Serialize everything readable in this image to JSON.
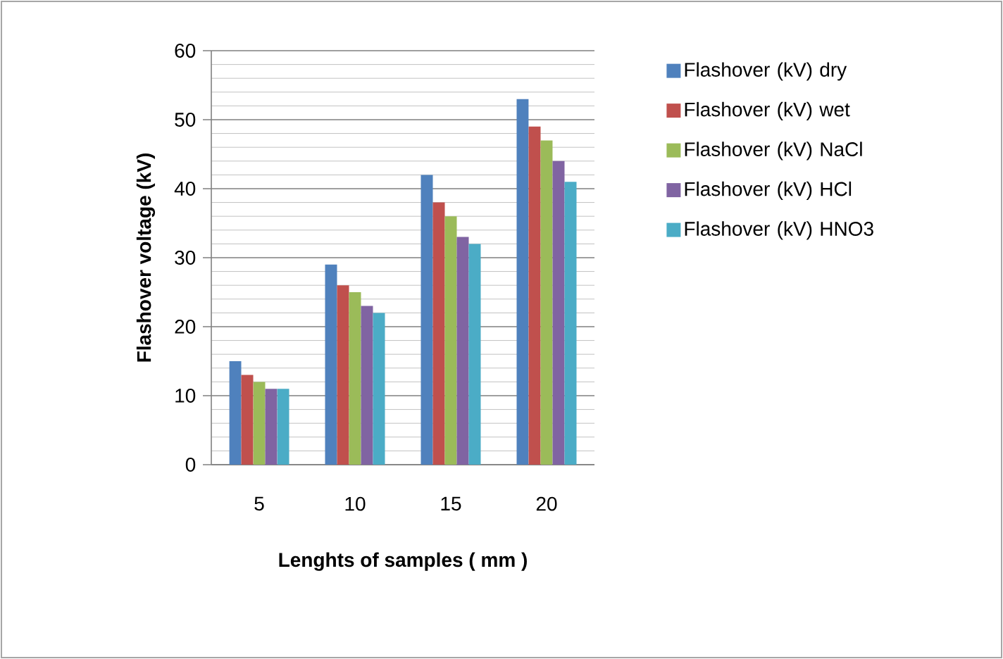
{
  "chart_data": {
    "type": "bar",
    "xlabel": "Lenghts of samples ( mm )",
    "ylabel": "Flashover voltage (kV)",
    "categories": [
      "5",
      "10",
      "15",
      "20"
    ],
    "ylim": [
      0,
      60
    ],
    "yticks": [
      0,
      10,
      20,
      30,
      40,
      50,
      60
    ],
    "grid": "y",
    "legend": "right",
    "series": [
      {
        "name": "Flashover (kV) dry",
        "color": "#4f81bd",
        "values": [
          15,
          29,
          42,
          53
        ]
      },
      {
        "name": "Flashover (kV) wet",
        "color": "#c0504d",
        "values": [
          13,
          26,
          38,
          49
        ]
      },
      {
        "name": "Flashover (kV) NaCl",
        "color": "#9bbb59",
        "values": [
          12,
          25,
          36,
          47
        ]
      },
      {
        "name": "Flashover (kV) HCl",
        "color": "#8064a2",
        "values": [
          11,
          23,
          33,
          44
        ]
      },
      {
        "name": "Flashover (kV) HNO3",
        "color": "#4bacc6",
        "values": [
          11,
          22,
          32,
          41
        ]
      }
    ]
  }
}
